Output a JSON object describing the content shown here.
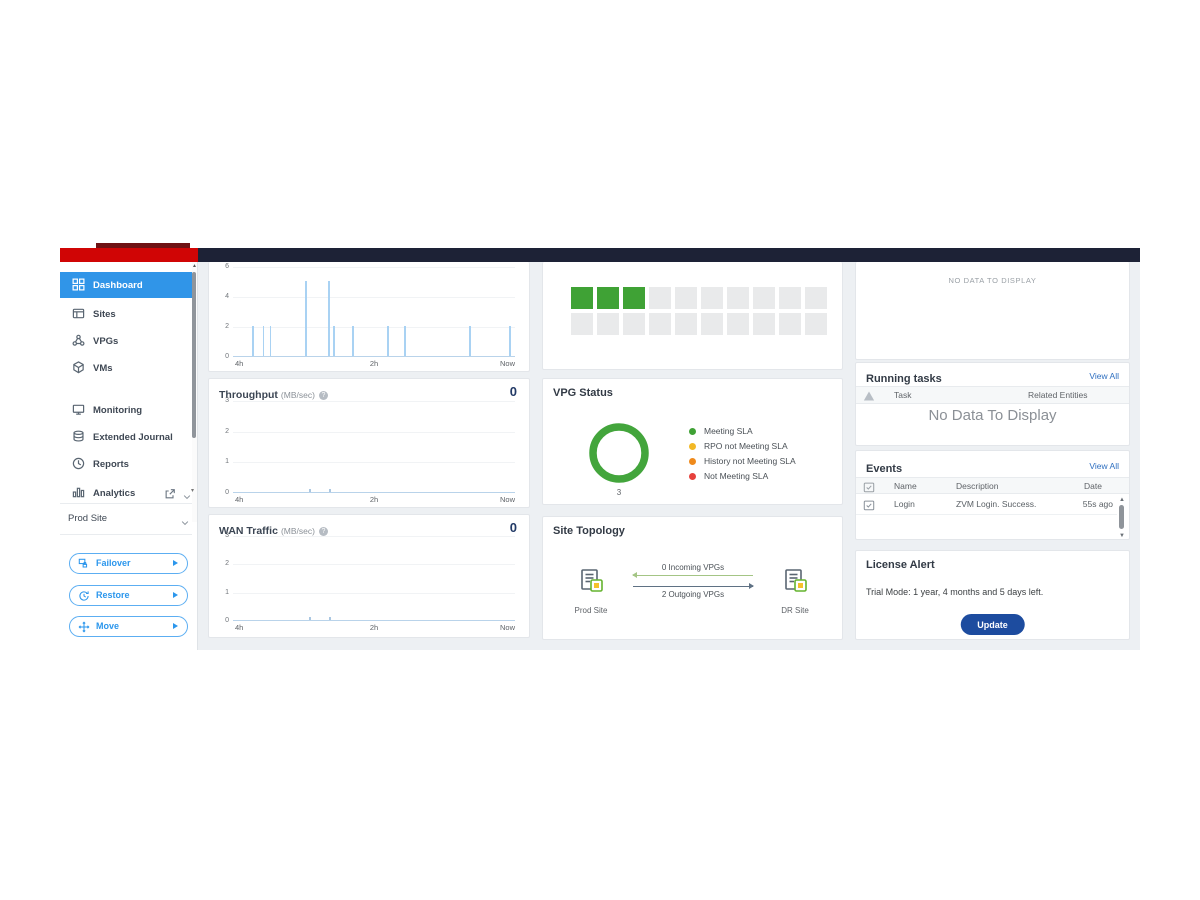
{
  "brand": {
    "logo_color": "#d00505",
    "topbar_color": "#1d2236",
    "accent_color": "#3095e8"
  },
  "sidebar": {
    "items": [
      {
        "label": "Dashboard",
        "icon": "dashboard-icon",
        "active": true
      },
      {
        "label": "Sites",
        "icon": "sites-icon"
      },
      {
        "label": "VPGs",
        "icon": "vpgs-icon"
      },
      {
        "label": "VMs",
        "icon": "vms-icon"
      },
      {
        "label": "Monitoring",
        "icon": "monitoring-icon"
      },
      {
        "label": "Extended Journal",
        "icon": "journal-icon"
      },
      {
        "label": "Reports",
        "icon": "reports-icon"
      },
      {
        "label": "Analytics",
        "icon": "analytics-icon",
        "external": true
      }
    ],
    "site_selector": {
      "label": "Prod Site"
    },
    "actions": [
      {
        "label": "Failover",
        "icon": "failover-icon"
      },
      {
        "label": "Restore",
        "icon": "restore-icon"
      },
      {
        "label": "Move",
        "icon": "move-icon"
      }
    ]
  },
  "charts": {
    "activity": {
      "y_ticks": [
        "6",
        "4",
        "2",
        "0"
      ],
      "x_ticks": [
        "4h",
        "2h",
        "Now"
      ],
      "spike_color": "#a9d2f3",
      "spikes": [
        {
          "x": 0.069,
          "v": 2
        },
        {
          "x": 0.106,
          "v": 2
        },
        {
          "x": 0.131,
          "v": 2
        },
        {
          "x": 0.257,
          "v": 5
        },
        {
          "x": 0.338,
          "v": 5
        },
        {
          "x": 0.355,
          "v": 2
        },
        {
          "x": 0.422,
          "v": 2
        },
        {
          "x": 0.547,
          "v": 2
        },
        {
          "x": 0.607,
          "v": 2
        },
        {
          "x": 0.837,
          "v": 2
        },
        {
          "x": 0.979,
          "v": 2
        }
      ]
    },
    "throughput": {
      "title": "Throughput",
      "unit": "(MB/sec)",
      "value": "0",
      "y_ticks": [
        "3",
        "2",
        "1",
        "0"
      ],
      "x_ticks": [
        "4h",
        "2h",
        "Now"
      ]
    },
    "wan": {
      "title": "WAN Traffic",
      "unit": "(MB/sec)",
      "value": "0",
      "y_ticks": [
        "3",
        "2",
        "1",
        "0"
      ],
      "x_ticks": [
        "4h",
        "2h",
        "Now"
      ]
    }
  },
  "vm_grid": {
    "columns": 10,
    "rows": 2,
    "on_color": "#3fa235",
    "off_color": "#e9eaeb",
    "states": [
      1,
      1,
      1,
      0,
      0,
      0,
      0,
      0,
      0,
      0,
      0,
      0,
      0,
      0,
      0,
      0,
      0,
      0,
      0,
      0
    ]
  },
  "vpg_status": {
    "title": "VPG Status",
    "count": "3",
    "ring_color": "#43a53c",
    "legend": [
      {
        "label": "Meeting SLA",
        "color": "#3fa135"
      },
      {
        "label": "RPO not Meeting SLA",
        "color": "#f2b826"
      },
      {
        "label": "History not Meeting SLA",
        "color": "#ef8a1c"
      },
      {
        "label": "Not Meeting SLA",
        "color": "#e6413c"
      }
    ]
  },
  "site_topology": {
    "title": "Site Topology",
    "left_site": "Prod Site",
    "right_site": "DR Site",
    "incoming_label": "0 Incoming VPGs",
    "outgoing_label": "2 Outgoing VPGs"
  },
  "panels": {
    "alerts": {
      "empty_text": "NO DATA TO DISPLAY"
    },
    "running_tasks": {
      "title": "Running tasks",
      "view_all": "View All",
      "columns": [
        "Task",
        "Related Entities"
      ],
      "empty_text": "No Data To Display"
    },
    "events": {
      "title": "Events",
      "view_all": "View All",
      "columns": [
        "Name",
        "Description",
        "Date"
      ],
      "rows": [
        {
          "name": "Login",
          "description": "ZVM Login. Success.",
          "date": "55s ago"
        }
      ]
    },
    "license": {
      "title": "License Alert",
      "message": "Trial Mode: 1 year, 4 months and 5 days left.",
      "button_label": "Update",
      "button_color": "#1d4c9f"
    }
  },
  "chart_data": [
    {
      "type": "bar",
      "title": "",
      "ylim": [
        0,
        6
      ],
      "yticks": [
        0,
        2,
        4,
        6
      ],
      "xticks": [
        "4h",
        "2h",
        "Now"
      ],
      "grid": true,
      "legend": "none",
      "points": [
        {
          "x": 0.069,
          "y": 2
        },
        {
          "x": 0.106,
          "y": 2
        },
        {
          "x": 0.131,
          "y": 2
        },
        {
          "x": 0.257,
          "y": 5
        },
        {
          "x": 0.338,
          "y": 5
        },
        {
          "x": 0.355,
          "y": 2
        },
        {
          "x": 0.422,
          "y": 2
        },
        {
          "x": 0.547,
          "y": 2
        },
        {
          "x": 0.607,
          "y": 2
        },
        {
          "x": 0.837,
          "y": 2
        },
        {
          "x": 0.979,
          "y": 2
        }
      ]
    },
    {
      "type": "line",
      "title": "Throughput",
      "ylabel": "MB/sec",
      "ylim": [
        0,
        3
      ],
      "yticks": [
        0,
        1,
        2,
        3
      ],
      "xticks": [
        "4h",
        "2h",
        "Now"
      ],
      "grid": true,
      "series": [
        {
          "name": "Throughput",
          "values": [
            0,
            0
          ]
        }
      ],
      "current_value": 0
    },
    {
      "type": "line",
      "title": "WAN Traffic",
      "ylabel": "MB/sec",
      "ylim": [
        0,
        3
      ],
      "yticks": [
        0,
        1,
        2,
        3
      ],
      "xticks": [
        "4h",
        "2h",
        "Now"
      ],
      "grid": true,
      "series": [
        {
          "name": "WAN Traffic",
          "values": [
            0,
            0
          ]
        }
      ],
      "current_value": 0
    },
    {
      "type": "pie",
      "title": "VPG Status",
      "total": 3,
      "slices": [
        {
          "label": "Meeting SLA",
          "value": 3,
          "color": "#3fa135"
        },
        {
          "label": "RPO not Meeting SLA",
          "value": 0,
          "color": "#f2b826"
        },
        {
          "label": "History not Meeting SLA",
          "value": 0,
          "color": "#ef8a1c"
        },
        {
          "label": "Not Meeting SLA",
          "value": 0,
          "color": "#e6413c"
        }
      ]
    }
  ]
}
